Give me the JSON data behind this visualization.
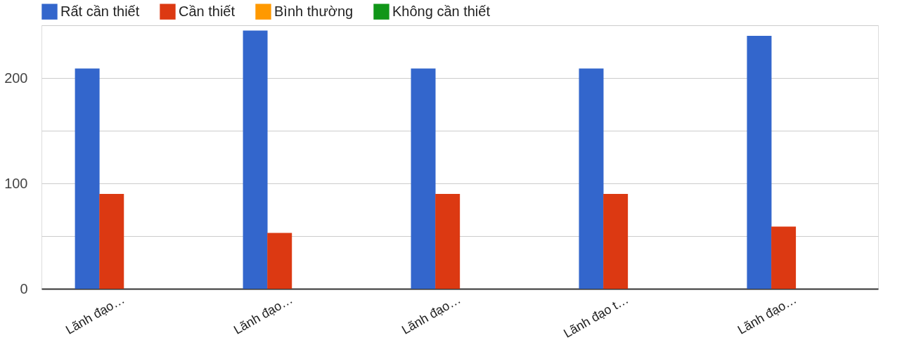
{
  "chart_data": {
    "type": "bar",
    "categories": [
      "Lãnh đạo…",
      "Lãnh đạo…",
      "Lãnh đạo…",
      "Lãnh đạo t…",
      "Lãnh đạo…"
    ],
    "series": [
      {
        "name": "Rất cần thiết",
        "color": "#3366cc",
        "values": [
          209,
          245,
          209,
          209,
          240
        ]
      },
      {
        "name": "Cần thiết",
        "color": "#dc3912",
        "values": [
          90,
          53,
          90,
          90,
          59
        ]
      },
      {
        "name": "Bình thường",
        "color": "#ff9900",
        "values": [
          0,
          0,
          0,
          0,
          0
        ]
      },
      {
        "name": "Không cần thiết",
        "color": "#109618",
        "values": [
          0,
          0,
          0,
          0,
          0
        ]
      }
    ],
    "ylim": [
      0,
      250
    ],
    "yticks": [
      0,
      {
        "value": 50,
        "label": null
      },
      100,
      {
        "value": 150,
        "label": null
      },
      200,
      {
        "value": 250,
        "label": null
      }
    ],
    "grid": "y",
    "legend": "top left"
  }
}
